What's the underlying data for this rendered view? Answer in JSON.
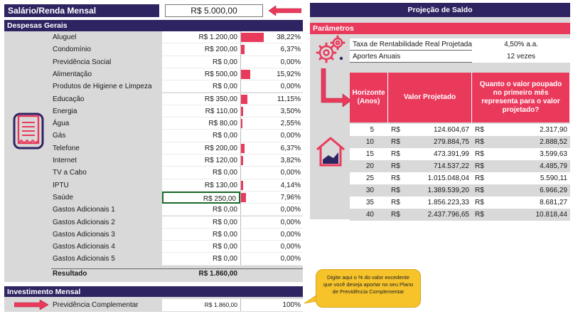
{
  "salary": {
    "label": "Salário/Renda Mensal",
    "value": "R$ 5.000,00"
  },
  "despesas": {
    "title": "Despesas Gerais",
    "rows": [
      {
        "name": "Aluguel",
        "value": "R$ 1.200,00",
        "pct": "38,22%",
        "fraction": 0.3822
      },
      {
        "name": "Condomínio",
        "value": "R$ 200,00",
        "pct": "6,37%",
        "fraction": 0.0637
      },
      {
        "name": "Previdência Social",
        "value": "R$ 0,00",
        "pct": "0,00%",
        "fraction": 0
      },
      {
        "name": "Alimentação",
        "value": "R$ 500,00",
        "pct": "15,92%",
        "fraction": 0.1592
      },
      {
        "name": "Produtos de Higiene e Limpeza",
        "value": "R$ 0,00",
        "pct": "0,00%",
        "fraction": 0
      },
      {
        "name": "Educação",
        "value": "R$ 350,00",
        "pct": "11,15%",
        "fraction": 0.1115
      },
      {
        "name": "Energia",
        "value": "R$ 110,00",
        "pct": "3,50%",
        "fraction": 0.035
      },
      {
        "name": "Água",
        "value": "R$ 80,00",
        "pct": "2,55%",
        "fraction": 0.0255
      },
      {
        "name": "Gás",
        "value": "R$ 0,00",
        "pct": "0,00%",
        "fraction": 0
      },
      {
        "name": "Telefone",
        "value": "R$ 200,00",
        "pct": "6,37%",
        "fraction": 0.0637
      },
      {
        "name": "Internet",
        "value": "R$ 120,00",
        "pct": "3,82%",
        "fraction": 0.0382
      },
      {
        "name": "TV a Cabo",
        "value": "R$ 0,00",
        "pct": "0,00%",
        "fraction": 0
      },
      {
        "name": "IPTU",
        "value": "R$ 130,00",
        "pct": "4,14%",
        "fraction": 0.0414
      },
      {
        "name": "Saúde",
        "value": "R$ 250,00",
        "pct": "7,96%",
        "fraction": 0.0796,
        "selected": true
      },
      {
        "name": "Gastos Adicionais 1",
        "value": "R$ 0,00",
        "pct": "0,00%",
        "fraction": 0
      },
      {
        "name": "Gastos Adicionais 2",
        "value": "R$ 0,00",
        "pct": "0,00%",
        "fraction": 0
      },
      {
        "name": "Gastos Adicionais 3",
        "value": "R$ 0,00",
        "pct": "0,00%",
        "fraction": 0
      },
      {
        "name": "Gastos Adicionais 4",
        "value": "R$ 0,00",
        "pct": "0,00%",
        "fraction": 0
      },
      {
        "name": "Gastos Adicionais 5",
        "value": "R$ 0,00",
        "pct": "0,00%",
        "fraction": 0
      }
    ],
    "result_label": "Resultado",
    "result_value": "R$ 1.860,00"
  },
  "investimento": {
    "title": "Investimento Mensal",
    "label": "Previdência Complementar",
    "value": "R$ 1.860,00",
    "pct": "100%"
  },
  "callout": {
    "text": "Digite aqui o % do valor excedente que você deseja aportar no seu Plano de Previdência Complementar"
  },
  "projecao": {
    "title": "Projeção de Saldo",
    "param_title": "Parâmetros",
    "params": [
      {
        "label": "Taxa de Rentabilidade Real Projetada",
        "value": "4,50% a.a."
      },
      {
        "label": "Aportes Anuais",
        "value": "12 vezes"
      }
    ],
    "headers": {
      "horizonte": "Horizonte (Anos)",
      "valor": "Valor Projetado",
      "quanto": "Quanto o valor poupado no primeiro mês representa para o valor projetado?"
    },
    "currency": "R$",
    "rows": [
      {
        "h": "5",
        "v1": "124.604,67",
        "v2": "2.317,90"
      },
      {
        "h": "10",
        "v1": "279.884,75",
        "v2": "2.888,52"
      },
      {
        "h": "15",
        "v1": "473.391,99",
        "v2": "3.599,63"
      },
      {
        "h": "20",
        "v1": "714.537,22",
        "v2": "4.485,79"
      },
      {
        "h": "25",
        "v1": "1.015.048,04",
        "v2": "5.590,11"
      },
      {
        "h": "30",
        "v1": "1.389.539,20",
        "v2": "6.966,29"
      },
      {
        "h": "35",
        "v1": "1.856.223,33",
        "v2": "8.681,27"
      },
      {
        "h": "40",
        "v1": "2.437.796,65",
        "v2": "10.818,44"
      }
    ]
  },
  "colors": {
    "navy": "#2f2462",
    "accent": "#ea3a5c",
    "callout": "#f6c32b"
  },
  "icons": [
    "receipt-icon",
    "gears-icon",
    "house-chart-icon",
    "arrow-right-icon",
    "l-arrow-icon"
  ]
}
